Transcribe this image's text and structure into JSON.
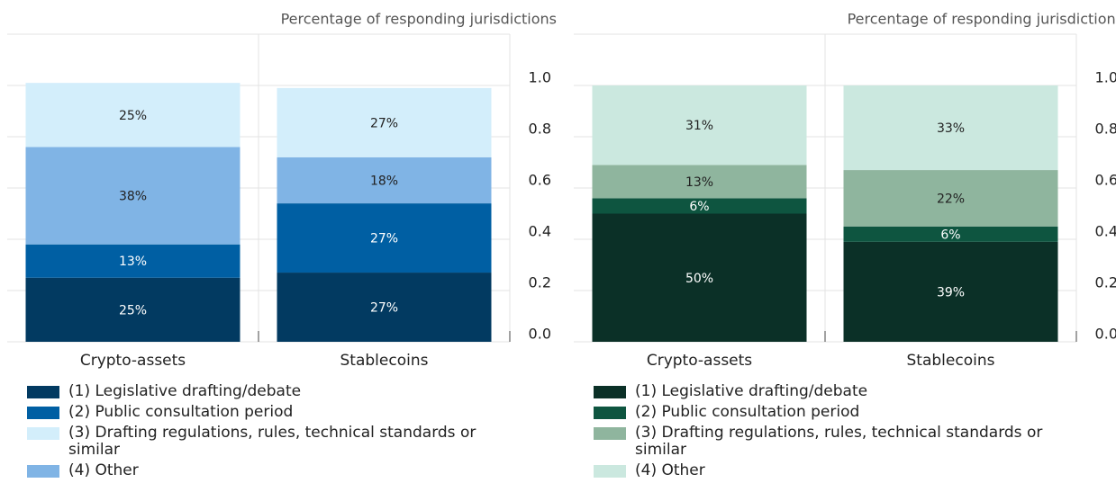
{
  "chart_data": [
    {
      "type": "bar",
      "stacked": true,
      "y_label": "Percentage of responding jurisdictions",
      "categories": [
        "Crypto-assets",
        "Stablecoins"
      ],
      "series": [
        {
          "name": "(1) Legislative drafting/debate",
          "color": "#023a61",
          "values": [
            0.25,
            0.27
          ],
          "value_labels": [
            "25%",
            "27%"
          ]
        },
        {
          "name": "(2) Public consultation period",
          "color": "#005fa3",
          "values": [
            0.13,
            0.27
          ],
          "value_labels": [
            "13%",
            "27%"
          ]
        },
        {
          "name": "(4) Other",
          "color": "#80b4e5",
          "values": [
            0.38,
            0.18
          ],
          "value_labels": [
            "38%",
            "18%"
          ]
        },
        {
          "name": "(3) Drafting regulations, rules, technical standards or similar",
          "color": "#d3eefb",
          "values": [
            0.25,
            0.27
          ],
          "value_labels": [
            "25%",
            "27%"
          ]
        }
      ],
      "ylim": [
        0,
        1.2
      ],
      "yticks": [
        {
          "value": 0,
          "label": "0.0"
        },
        0.2,
        0.4,
        0.6,
        0.8,
        {
          "value": 1,
          "label": "1.0"
        }
      ],
      "grid": true
    },
    {
      "type": "bar",
      "stacked": true,
      "y_label": "Percentage of responding jurisdictions",
      "categories": [
        "Crypto-assets",
        "Stablecoins"
      ],
      "series": [
        {
          "name": "(1) Legislative drafting/debate",
          "color": "#0b3027",
          "values": [
            0.5,
            0.39
          ],
          "value_labels": [
            "50%",
            "39%"
          ]
        },
        {
          "name": "(2) Public consultation period",
          "color": "#0e5540",
          "values": [
            0.06,
            0.06
          ],
          "value_labels": [
            "6%",
            "6%"
          ]
        },
        {
          "name": "(3) Drafting regulations, rules, technical standards or similar",
          "color": "#8fb59e",
          "values": [
            0.13,
            0.22
          ],
          "value_labels": [
            "13%",
            "22%"
          ]
        },
        {
          "name": "(4) Other",
          "color": "#cbe8df",
          "values": [
            0.31,
            0.33
          ],
          "value_labels": [
            "31%",
            "33%"
          ]
        }
      ],
      "ylim": [
        0,
        1.2
      ],
      "yticks": [
        {
          "value": 0,
          "label": "0.0"
        },
        0.2,
        0.4,
        0.6,
        0.8,
        {
          "value": 1,
          "label": "1.0"
        }
      ],
      "grid": true
    }
  ]
}
